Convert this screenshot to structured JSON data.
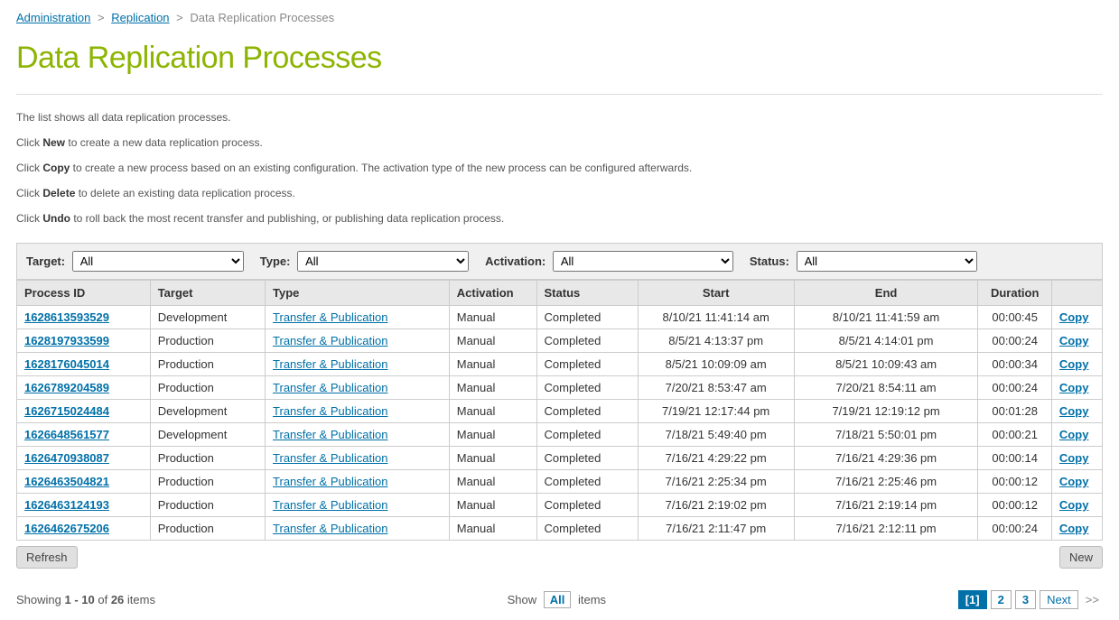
{
  "breadcrumb": {
    "administration": "Administration",
    "replication": "Replication",
    "current": "Data Replication Processes"
  },
  "page_title": "Data Replication Processes",
  "help": {
    "line1": "The list shows all data replication processes.",
    "line2_pre": "Click ",
    "line2_bold": "New",
    "line2_post": " to create a new data replication process.",
    "line3_pre": "Click ",
    "line3_bold": "Copy",
    "line3_post": " to create a new process based on an existing configuration. The activation type of the new process can be configured afterwards.",
    "line4_pre": "Click ",
    "line4_bold": "Delete",
    "line4_post": " to delete an existing data replication process.",
    "line5_pre": "Click ",
    "line5_bold": "Undo",
    "line5_post": " to roll back the most recent transfer and publishing, or publishing data replication process."
  },
  "filters": {
    "target_label": "Target:",
    "target_value": "All",
    "type_label": "Type:",
    "type_value": "All",
    "activation_label": "Activation:",
    "activation_value": "All",
    "status_label": "Status:",
    "status_value": "All"
  },
  "columns": {
    "process_id": "Process ID",
    "target": "Target",
    "type": "Type",
    "activation": "Activation",
    "status": "Status",
    "start": "Start",
    "end": "End",
    "duration": "Duration",
    "copy": ""
  },
  "rows": [
    {
      "pid": "1628613593529",
      "target": "Development",
      "type": "Transfer & Publication",
      "activation": "Manual",
      "status": "Completed",
      "start": "8/10/21 11:41:14 am",
      "end": "8/10/21 11:41:59 am",
      "duration": "00:00:45",
      "copy": "Copy"
    },
    {
      "pid": "1628197933599",
      "target": "Production",
      "type": "Transfer & Publication",
      "activation": "Manual",
      "status": "Completed",
      "start": "8/5/21 4:13:37 pm",
      "end": "8/5/21 4:14:01 pm",
      "duration": "00:00:24",
      "copy": "Copy"
    },
    {
      "pid": "1628176045014",
      "target": "Production",
      "type": "Transfer & Publication",
      "activation": "Manual",
      "status": "Completed",
      "start": "8/5/21 10:09:09 am",
      "end": "8/5/21 10:09:43 am",
      "duration": "00:00:34",
      "copy": "Copy"
    },
    {
      "pid": "1626789204589",
      "target": "Production",
      "type": "Transfer & Publication",
      "activation": "Manual",
      "status": "Completed",
      "start": "7/20/21 8:53:47 am",
      "end": "7/20/21 8:54:11 am",
      "duration": "00:00:24",
      "copy": "Copy"
    },
    {
      "pid": "1626715024484",
      "target": "Development",
      "type": "Transfer & Publication",
      "activation": "Manual",
      "status": "Completed",
      "start": "7/19/21 12:17:44 pm",
      "end": "7/19/21 12:19:12 pm",
      "duration": "00:01:28",
      "copy": "Copy"
    },
    {
      "pid": "1626648561577",
      "target": "Development",
      "type": "Transfer & Publication",
      "activation": "Manual",
      "status": "Completed",
      "start": "7/18/21 5:49:40 pm",
      "end": "7/18/21 5:50:01 pm",
      "duration": "00:00:21",
      "copy": "Copy"
    },
    {
      "pid": "1626470938087",
      "target": "Production",
      "type": "Transfer & Publication",
      "activation": "Manual",
      "status": "Completed",
      "start": "7/16/21 4:29:22 pm",
      "end": "7/16/21 4:29:36 pm",
      "duration": "00:00:14",
      "copy": "Copy"
    },
    {
      "pid": "1626463504821",
      "target": "Production",
      "type": "Transfer & Publication",
      "activation": "Manual",
      "status": "Completed",
      "start": "7/16/21 2:25:34 pm",
      "end": "7/16/21 2:25:46 pm",
      "duration": "00:00:12",
      "copy": "Copy"
    },
    {
      "pid": "1626463124193",
      "target": "Production",
      "type": "Transfer & Publication",
      "activation": "Manual",
      "status": "Completed",
      "start": "7/16/21 2:19:02 pm",
      "end": "7/16/21 2:19:14 pm",
      "duration": "00:00:12",
      "copy": "Copy"
    },
    {
      "pid": "1626462675206",
      "target": "Production",
      "type": "Transfer & Publication",
      "activation": "Manual",
      "status": "Completed",
      "start": "7/16/21 2:11:47 pm",
      "end": "7/16/21 2:12:11 pm",
      "duration": "00:00:24",
      "copy": "Copy"
    }
  ],
  "buttons": {
    "refresh": "Refresh",
    "new": "New"
  },
  "pagination": {
    "showing_pre": "Showing ",
    "showing_range": "1 - 10",
    "showing_mid": " of ",
    "showing_total": "26",
    "showing_post": " items",
    "show_label": "Show",
    "show_value": "All",
    "show_post": "items",
    "page1": "[1]",
    "page2": "2",
    "page3": "3",
    "next": "Next",
    "last": ">>"
  }
}
